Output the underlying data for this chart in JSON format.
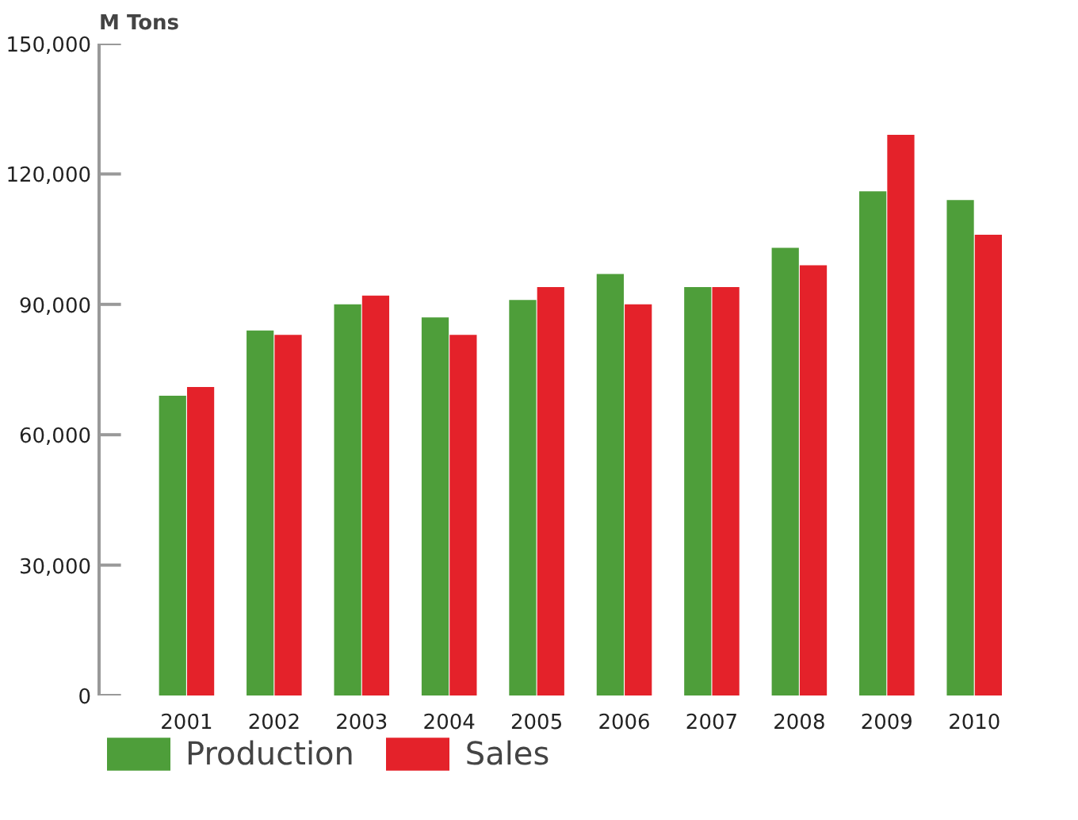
{
  "chart_data": {
    "type": "bar",
    "ylabel": "M Tons",
    "categories": [
      "2001",
      "2002",
      "2003",
      "2004",
      "2005",
      "2006",
      "2007",
      "2008",
      "2009",
      "2010"
    ],
    "series": [
      {
        "name": "Production",
        "color": "#4e9e3a",
        "values": [
          69000,
          84000,
          90000,
          87000,
          91000,
          97000,
          94000,
          103000,
          116000,
          114000
        ]
      },
      {
        "name": "Sales",
        "color": "#e4222a",
        "values": [
          71000,
          83000,
          92000,
          83000,
          94000,
          90000,
          94000,
          99000,
          129000,
          106000
        ]
      }
    ],
    "ylim": [
      0,
      150000
    ],
    "yticks": [
      {
        "value": 0,
        "label": "0"
      },
      {
        "value": 30000,
        "label": "30,000"
      },
      {
        "value": 60000,
        "label": "60,000"
      },
      {
        "value": 90000,
        "label": "90,000"
      },
      {
        "value": 120000,
        "label": "120,000"
      },
      {
        "value": 150000,
        "label": "150,000"
      }
    ],
    "grid": false,
    "legend": "bottom"
  }
}
